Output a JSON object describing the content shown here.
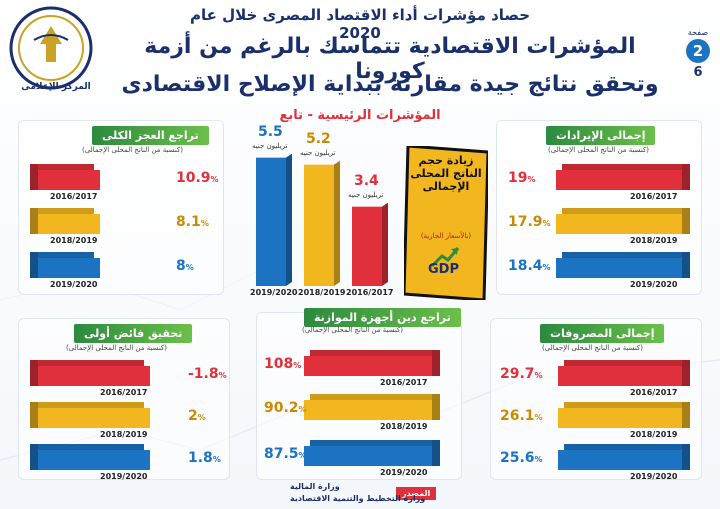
{
  "header": {
    "top_title": "حصاد مؤشرات أداء الاقتصاد المصرى خلال عام 2020",
    "headline_1": "المؤشرات الاقتصادية تتماسك بالرغم من أزمة كورونا",
    "headline_2": "وتحقق نتائج جيدة مقارنة ببداية الإصلاح الاقتصادى",
    "subhead": "المؤشرات الرئيسية - تابع",
    "logo_line": "المركز الإعلامى",
    "page_label": "صفحة",
    "page_number": "2",
    "page_total": "6"
  },
  "colors": {
    "red": "#e0303b",
    "yellow": "#f2b71f",
    "blue": "#1b73c2",
    "green": "#3aa14a",
    "navy": "#1b2f6b"
  },
  "panels": {
    "revenues": {
      "title": "إجمالى الإيرادات",
      "note": "(كنسبة من الناتج المحلى الإجمالى)",
      "rows": [
        {
          "year": "2016/2017",
          "value": "19",
          "unit": "%"
        },
        {
          "year": "2018/2019",
          "value": "17.9",
          "unit": "%"
        },
        {
          "year": "2019/2020",
          "value": "18.4",
          "unit": "%"
        }
      ]
    },
    "deficit": {
      "title": "تراجع العجز الكلى",
      "note": "(كنسبة من الناتج المحلى الإجمالى)",
      "rows": [
        {
          "year": "2016/2017",
          "value": "10.9",
          "unit": "%"
        },
        {
          "year": "2018/2019",
          "value": "8.1",
          "unit": "%"
        },
        {
          "year": "2019/2020",
          "value": "8",
          "unit": "%"
        }
      ]
    },
    "expenses": {
      "title": "إجمالى المصروفات",
      "note": "(كنسبة من الناتج المحلى الإجمالى)",
      "rows": [
        {
          "year": "2016/2017",
          "value": "29.7",
          "unit": "%"
        },
        {
          "year": "2018/2019",
          "value": "26.1",
          "unit": "%"
        },
        {
          "year": "2019/2020",
          "value": "25.6",
          "unit": "%"
        }
      ]
    },
    "debt": {
      "title": "تراجع دين أجهزة الموازنة",
      "note": "(كنسبة من الناتج المحلى الإجمالى)",
      "rows": [
        {
          "year": "2016/2017",
          "value": "108",
          "unit": "%"
        },
        {
          "year": "2018/2019",
          "value": "90.2",
          "unit": "%"
        },
        {
          "year": "2019/2020",
          "value": "87.5",
          "unit": "%"
        }
      ]
    },
    "surplus": {
      "title": "تحقيق فائض أولى",
      "note": "(كنسبة من الناتج المحلى الإجمالى)",
      "rows": [
        {
          "year": "2016/2017",
          "value": "-1.8",
          "unit": "%"
        },
        {
          "year": "2018/2019",
          "value": "2",
          "unit": "%"
        },
        {
          "year": "2019/2020",
          "value": "1.8",
          "unit": "%"
        }
      ]
    }
  },
  "gdp": {
    "label": "زيادة حجم الناتج المحلى الإجمالى",
    "sub": "(بالأسعار الجارية)",
    "logo": "GDP",
    "unit": "تريليون جنيه",
    "columns": [
      {
        "year": "2019/2020",
        "value": "5.5"
      },
      {
        "year": "2018/2019",
        "value": "5.2"
      },
      {
        "year": "2016/2017",
        "value": "3.4"
      }
    ]
  },
  "footer": {
    "source_label": "المصدر",
    "source_1": "وزارة المالية",
    "source_2": "وزارة التخطيط والتنمية الاقتصادية"
  },
  "chart_data": [
    {
      "type": "bar",
      "title": "إجمالى الإيرادات",
      "categories": [
        "2016/2017",
        "2018/2019",
        "2019/2020"
      ],
      "values": [
        19,
        17.9,
        18.4
      ]
    },
    {
      "type": "bar",
      "title": "تراجع العجز الكلى",
      "categories": [
        "2016/2017",
        "2018/2019",
        "2019/2020"
      ],
      "values": [
        10.9,
        8.1,
        8
      ]
    },
    {
      "type": "bar",
      "title": "زيادة حجم الناتج المحلى الإجمالى",
      "categories": [
        "2016/2017",
        "2018/2019",
        "2019/2020"
      ],
      "values": [
        3.4,
        5.2,
        5.5
      ]
    },
    {
      "type": "bar",
      "title": "إجمالى المصروفات",
      "categories": [
        "2016/2017",
        "2018/2019",
        "2019/2020"
      ],
      "values": [
        29.7,
        26.1,
        25.6
      ]
    },
    {
      "type": "bar",
      "title": "تراجع دين أجهزة الموازنة",
      "categories": [
        "2016/2017",
        "2018/2019",
        "2019/2020"
      ],
      "values": [
        108,
        90.2,
        87.5
      ]
    },
    {
      "type": "bar",
      "title": "تحقيق فائض أولى",
      "categories": [
        "2016/2017",
        "2018/2019",
        "2019/2020"
      ],
      "values": [
        -1.8,
        2,
        1.8
      ]
    }
  ]
}
